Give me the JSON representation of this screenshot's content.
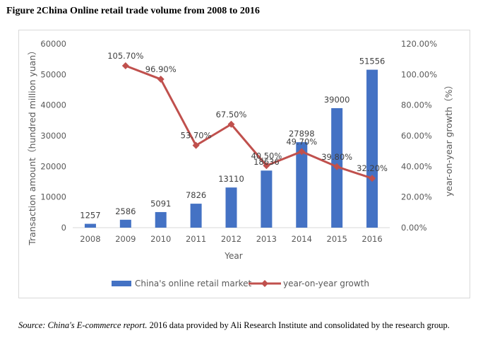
{
  "figure_title": "Figure 2China Online retail trade volume from 2008 to 2016",
  "source": {
    "label": "Source:",
    "publication": "China's E-commerce report.",
    "text": "2016 data provided by Ali Research Institute and consolidated by the research group."
  },
  "chart_data": {
    "type": "bar+line",
    "categories": [
      "2008",
      "2009",
      "2010",
      "2011",
      "2012",
      "2013",
      "2014",
      "2015",
      "2016"
    ],
    "series": [
      {
        "name": "China's online retail market",
        "type": "bar",
        "axis": "left",
        "values": [
          1257,
          2586,
          5091,
          7826,
          13110,
          18636,
          27898,
          39000,
          51556
        ],
        "labels": [
          "1257",
          "2586",
          "5091",
          "7826",
          "13110",
          "18636",
          "27898",
          "39000",
          "51556"
        ],
        "color": "#4472c4"
      },
      {
        "name": "year-on-year growth",
        "type": "line",
        "axis": "right",
        "values": [
          null,
          105.7,
          96.9,
          53.7,
          67.5,
          40.5,
          49.7,
          39.8,
          32.2
        ],
        "labels": [
          "",
          "105.70%",
          "96.90%",
          "53.70%",
          "67.50%",
          "40.50%",
          "49.70%",
          "39.80%",
          "32.20%"
        ],
        "color": "#c0504d"
      }
    ],
    "xlabel": "Year",
    "ylabel": "Transaction amount（hundred million yuan）",
    "y2label": "year-on-year growth（%）",
    "ylim": [
      0,
      60000
    ],
    "yticks": [
      "0",
      "10000",
      "20000",
      "30000",
      "40000",
      "50000",
      "60000"
    ],
    "y2lim": [
      0,
      120
    ],
    "y2ticks": [
      "0.00%",
      "20.00%",
      "40.00%",
      "60.00%",
      "80.00%",
      "100.00%",
      "120.00%"
    ],
    "legend_position": "bottom",
    "grid": false
  }
}
